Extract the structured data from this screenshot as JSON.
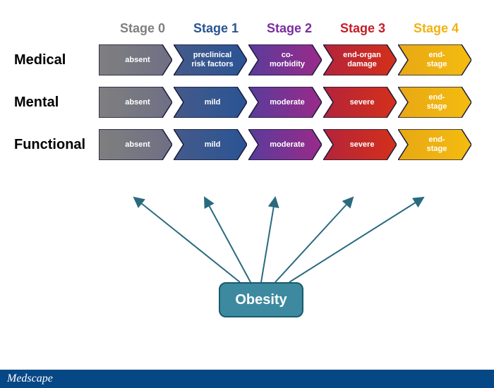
{
  "stages": [
    {
      "label": "Stage 0",
      "color": "#7f7f7f"
    },
    {
      "label": "Stage 1",
      "color": "#2a5494"
    },
    {
      "label": "Stage 2",
      "color": "#7a2ea0"
    },
    {
      "label": "Stage 3",
      "color": "#c41e26"
    },
    {
      "label": "Stage 4",
      "color": "#efb310"
    }
  ],
  "rows": [
    {
      "label": "Medical",
      "cells": [
        "absent",
        "preclinical risk factors",
        "co-morbidity",
        "end-organ damage",
        "end-stage"
      ]
    },
    {
      "label": "Mental",
      "cells": [
        "absent",
        "mild",
        "moderate",
        "severe",
        "end-stage"
      ]
    },
    {
      "label": "Functional",
      "cells": [
        "absent",
        "mild",
        "moderate",
        "severe",
        "end-stage"
      ]
    }
  ],
  "chevron_colors": {
    "s0_left": "#7f7f7f",
    "s0_right": "#6f6f85",
    "s1_left": "#455a8a",
    "s1_right": "#2a5494",
    "s2_left": "#5a3c9a",
    "s2_right": "#9a2a8a",
    "s3_left": "#b4243a",
    "s3_right": "#d4301a",
    "s4_left": "#e8a814",
    "s4_right": "#f4bc10",
    "stroke": "#1a1a3a",
    "stroke_width": 1.5
  },
  "center_box": {
    "label": "Obesity",
    "bg": "#3d8aa0",
    "border": "#1a5a6e"
  },
  "arrow_color": "#2a6a7f",
  "footer": {
    "text": "Medscape",
    "bg": "#064785"
  },
  "layout": {
    "chevron_w": 104,
    "chevron_h": 44,
    "notch": 14
  }
}
